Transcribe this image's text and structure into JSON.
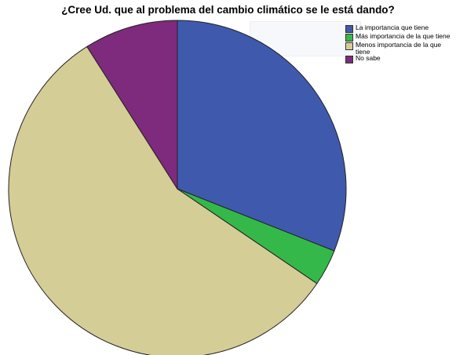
{
  "chart_data": {
    "type": "pie",
    "title": "¿Cree Ud. que al problema del cambio climático se le está dando?",
    "slices": [
      {
        "label": "La importancia que tiene",
        "value": 31.0,
        "color": "#3f59ad"
      },
      {
        "label": "Más importancia de la que tiene",
        "value": 3.5,
        "color": "#35b84a"
      },
      {
        "label": "Menos importancia de la que tiene",
        "value": 56.5,
        "color": "#d5cd96"
      },
      {
        "label": "No sabe",
        "value": 9.0,
        "color": "#7e2a7d"
      }
    ],
    "start_angle_deg": 0,
    "direction": "clockwise",
    "legend_position": "top-right"
  }
}
